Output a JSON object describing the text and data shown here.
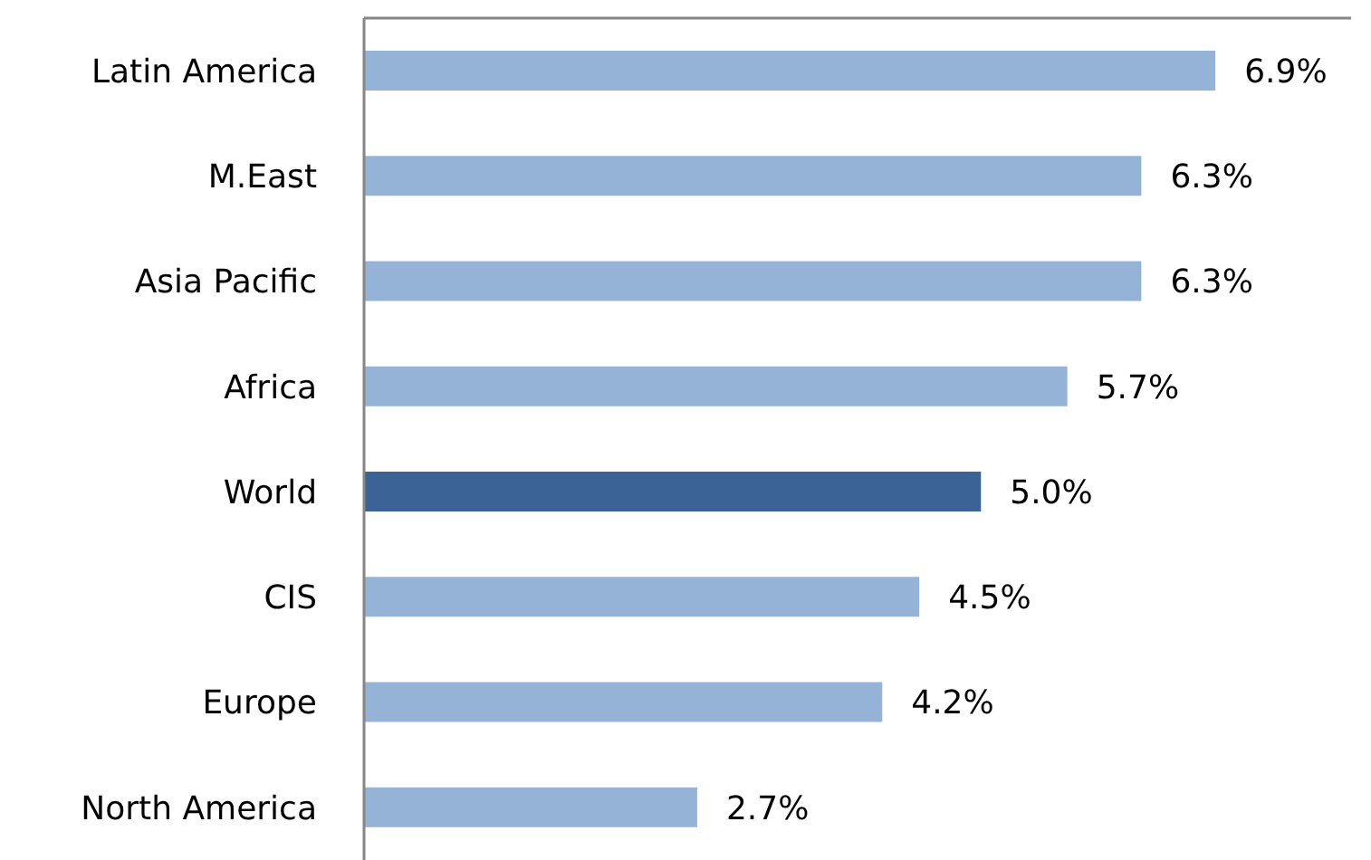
{
  "chart_data": {
    "type": "bar",
    "orientation": "horizontal",
    "categories": [
      "Latin America",
      "M.East",
      "Asia Pacific",
      "Africa",
      "World",
      "CIS",
      "Europe",
      "North America"
    ],
    "values": [
      6.9,
      6.3,
      6.3,
      5.7,
      5.0,
      4.5,
      4.2,
      2.7
    ],
    "colors": [
      "#95b3d7",
      "#95b3d7",
      "#95b3d7",
      "#95b3d7",
      "#3b6396",
      "#95b3d7",
      "#95b3d7",
      "#95b3d7"
    ],
    "value_labels": [
      "6.9%",
      "6.3%",
      "6.3%",
      "5.7%",
      "5.0%",
      "4.5%",
      "4.2%",
      "2.7%"
    ],
    "xlim": [
      0,
      8
    ],
    "tick_labels": "y"
  }
}
